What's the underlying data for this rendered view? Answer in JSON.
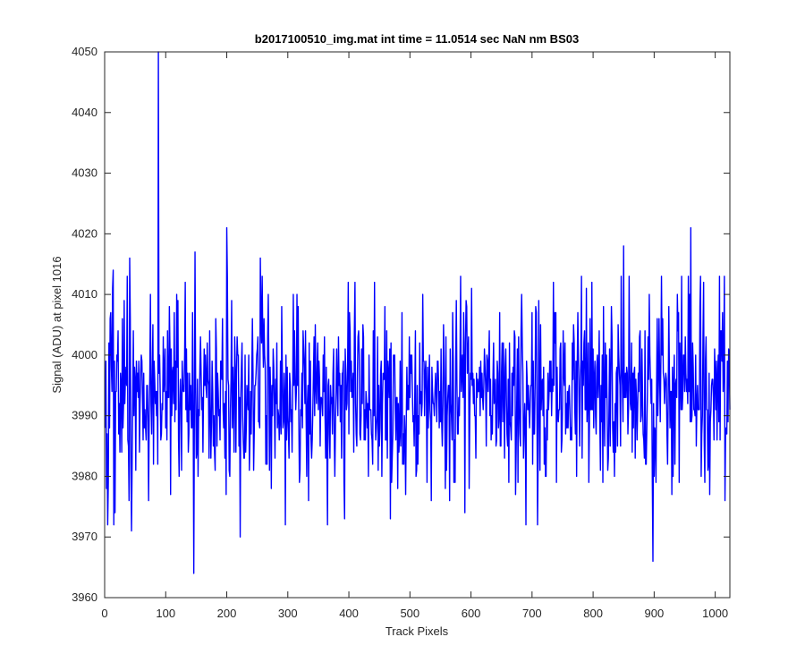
{
  "chart_data": {
    "type": "line",
    "title": "b2017100510_img.mat int time = 11.0514 sec  NaN nm BS03",
    "xlabel": "Track Pixels",
    "ylabel": "Signal (ADU) at pixel 1016",
    "xlim": [
      0,
      1024
    ],
    "ylim": [
      3960,
      4050
    ],
    "x_ticks": [
      "0",
      "100",
      "200",
      "300",
      "400",
      "500",
      "600",
      "700",
      "800",
      "900",
      "1000"
    ],
    "y_ticks": [
      "3960",
      "3970",
      "3980",
      "3990",
      "4000",
      "4010",
      "4020",
      "4030",
      "4040",
      "4050"
    ],
    "grid": false,
    "box": true,
    "line_color": "#0000ff",
    "series": [
      {
        "x_start": 1,
        "x_step": 1,
        "noise_model": {
          "mean": 3994,
          "std": 8,
          "n_points": 1024
        },
        "notable_points": [
          [
            3,
            3978
          ],
          [
            14,
            4014
          ],
          [
            32,
            4009
          ],
          [
            41,
            4016
          ],
          [
            44,
            3971
          ],
          [
            88,
            4050
          ],
          [
            120,
            4009
          ],
          [
            146,
            3964
          ],
          [
            148,
            4017
          ],
          [
            200,
            4021
          ],
          [
            222,
            3970
          ],
          [
            255,
            4016
          ],
          [
            365,
            3972
          ],
          [
            410,
            4012
          ],
          [
            590,
            3974
          ],
          [
            690,
            3972
          ],
          [
            735,
            4012
          ],
          [
            850,
            4018
          ],
          [
            898,
            3966
          ],
          [
            960,
            4021
          ],
          [
            1016,
            3976
          ]
        ]
      }
    ]
  }
}
